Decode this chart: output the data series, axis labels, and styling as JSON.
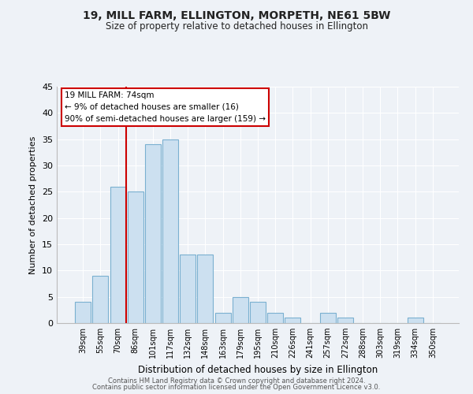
{
  "title": "19, MILL FARM, ELLINGTON, MORPETH, NE61 5BW",
  "subtitle": "Size of property relative to detached houses in Ellington",
  "xlabel": "Distribution of detached houses by size in Ellington",
  "ylabel": "Number of detached properties",
  "bar_labels": [
    "39sqm",
    "55sqm",
    "70sqm",
    "86sqm",
    "101sqm",
    "117sqm",
    "132sqm",
    "148sqm",
    "163sqm",
    "179sqm",
    "195sqm",
    "210sqm",
    "226sqm",
    "241sqm",
    "257sqm",
    "272sqm",
    "288sqm",
    "303sqm",
    "319sqm",
    "334sqm",
    "350sqm"
  ],
  "bar_values": [
    4,
    9,
    26,
    25,
    34,
    35,
    13,
    13,
    2,
    5,
    4,
    2,
    1,
    0,
    2,
    1,
    0,
    0,
    0,
    1,
    0
  ],
  "bar_color": "#cce0f0",
  "bar_edge_color": "#7ab0d0",
  "vline_color": "#cc0000",
  "ylim": [
    0,
    45
  ],
  "yticks": [
    0,
    5,
    10,
    15,
    20,
    25,
    30,
    35,
    40,
    45
  ],
  "annotation_title": "19 MILL FARM: 74sqm",
  "annotation_line1": "← 9% of detached houses are smaller (16)",
  "annotation_line2": "90% of semi-detached houses are larger (159) →",
  "footer_line1": "Contains HM Land Registry data © Crown copyright and database right 2024.",
  "footer_line2": "Contains public sector information licensed under the Open Government Licence v3.0.",
  "background_color": "#eef2f7",
  "plot_bg_color": "#eef2f7",
  "grid_color": "#ffffff"
}
